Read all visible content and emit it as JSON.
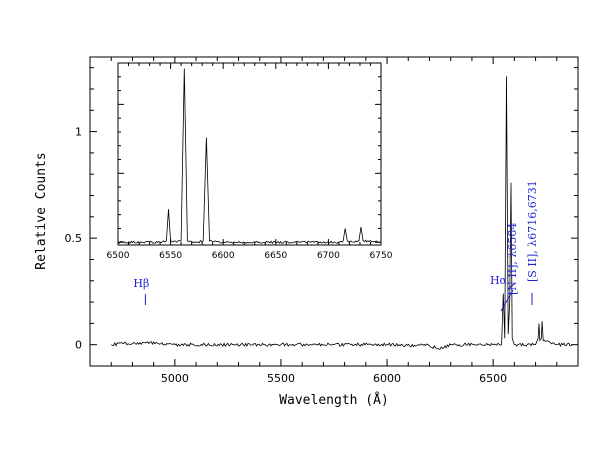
{
  "chart_data": {
    "type": "line",
    "title": "",
    "xlabel": "Wavelength (Å)",
    "ylabel": "Relative Counts",
    "xlim": [
      4600,
      6900
    ],
    "ylim": [
      -0.1,
      1.35
    ],
    "x_ticks": [
      5000,
      5500,
      6000,
      6500
    ],
    "x_tick_labels": [
      "5000",
      "5500",
      "6000",
      "6500"
    ],
    "y_ticks": [
      0,
      0.5,
      1
    ],
    "y_tick_labels": [
      "0",
      "0.5",
      "1"
    ],
    "grid": false,
    "legend": "none",
    "line_color": "#000000",
    "annotation_color": "#1f1fd6",
    "series": [
      {
        "x": [
          4700,
          4860,
          5000,
          5500,
          6000,
          6200,
          6250,
          6300,
          6500,
          6540,
          6548,
          6555,
          6563,
          6571,
          6578,
          6584,
          6590,
          6600,
          6700,
          6712,
          6716,
          6720,
          6727,
          6731,
          6736,
          6800,
          6880
        ],
        "y": [
          0,
          0.01,
          0,
          0,
          0,
          -0.005,
          -0.02,
          0,
          0,
          0,
          0.24,
          0.03,
          1.26,
          0.05,
          0.2,
          0.76,
          0.03,
          0,
          0,
          0.03,
          0.1,
          0.02,
          0.03,
          0.11,
          0.02,
          0,
          0
        ]
      }
    ],
    "annotations": [
      {
        "label": "Hβ",
        "x": 4861
      },
      {
        "label": "Hα",
        "x": 6563
      },
      {
        "label": "[N II], λ6584",
        "x": 6584
      },
      {
        "label": "[S II], λ6716,6731",
        "x": 6724
      }
    ],
    "inset": {
      "type": "line",
      "xlim": [
        6500,
        6750
      ],
      "ylim": [
        -0.02,
        1.3
      ],
      "x_ticks": [
        6500,
        6550,
        6600,
        6650,
        6700,
        6750
      ],
      "x_tick_labels": [
        "6500",
        "6550",
        "6600",
        "6650",
        "6700",
        "6750"
      ],
      "series": [
        {
          "x": [
            6500,
            6540,
            6546,
            6548,
            6550,
            6556,
            6560,
            6563,
            6566,
            6575,
            6581,
            6584,
            6587,
            6600,
            6650,
            6710,
            6714,
            6716,
            6718,
            6725,
            6729,
            6731,
            6733,
            6750
          ],
          "y": [
            0,
            0,
            0.01,
            0.24,
            0.01,
            0,
            0.01,
            1.26,
            0.01,
            0,
            0.01,
            0.76,
            0.01,
            0,
            0,
            0,
            0.01,
            0.1,
            0.01,
            0,
            0.01,
            0.11,
            0.01,
            0
          ]
        }
      ]
    }
  }
}
